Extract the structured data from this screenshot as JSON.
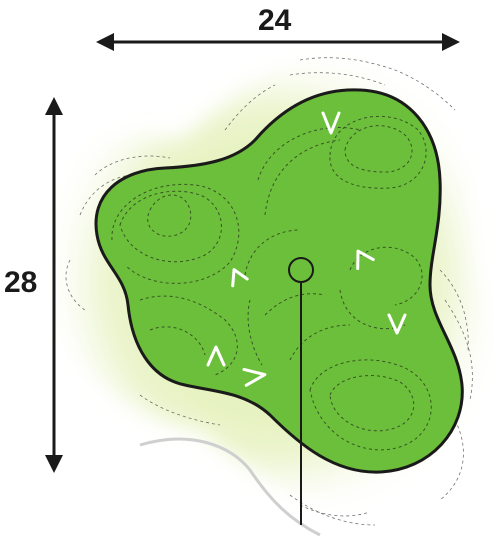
{
  "dimensions": {
    "width_label": "24",
    "height_label": "28"
  },
  "colors": {
    "green_fill": "#6cbf3a",
    "outline": "#1a1a1a",
    "halo": "#d8eaa0",
    "slope_marks": "#ffffff",
    "contours": "#333333"
  },
  "slope_marks": [
    {
      "glyph": "V",
      "direction": "down"
    },
    {
      "glyph": "^",
      "direction": "up"
    },
    {
      "glyph": "^",
      "direction": "up"
    },
    {
      "glyph": "V",
      "direction": "down"
    },
    {
      "glyph": "^",
      "direction": "up"
    },
    {
      "glyph": ">",
      "direction": "right"
    }
  ],
  "features": [
    "hole-marker",
    "flagstick-line",
    "contour-lines"
  ]
}
